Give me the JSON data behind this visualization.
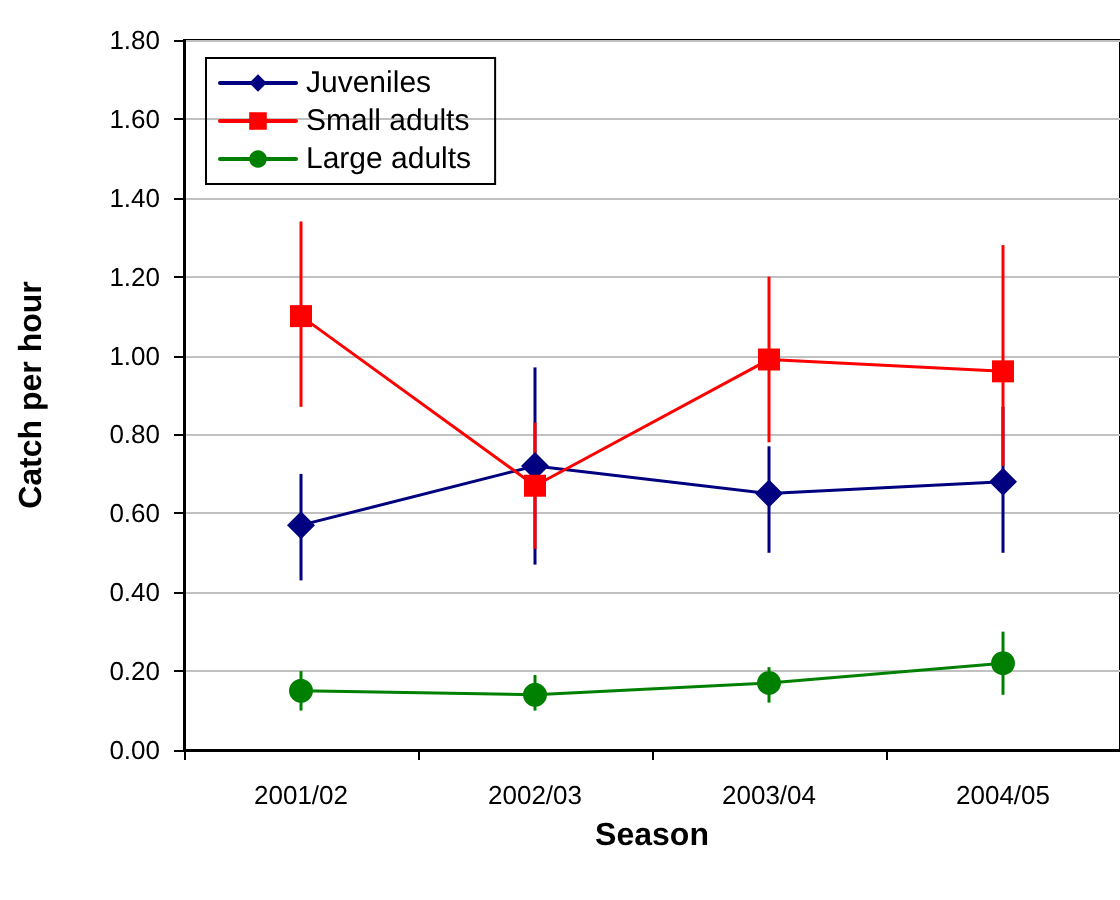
{
  "chart_data": {
    "type": "line",
    "xlabel": "Season",
    "ylabel": "Catch per hour",
    "categories": [
      "2001/02",
      "2002/03",
      "2003/04",
      "2004/05"
    ],
    "series": [
      {
        "name": "Juveniles",
        "color": "#000080",
        "marker": "diamond",
        "values": [
          0.57,
          0.72,
          0.65,
          0.68
        ],
        "errors": [
          [
            0.43,
            0.7
          ],
          [
            0.47,
            0.97
          ],
          [
            0.5,
            0.77
          ],
          [
            0.5,
            0.87
          ]
        ]
      },
      {
        "name": "Small adults",
        "color": "#ff0000",
        "marker": "square",
        "values": [
          1.1,
          0.67,
          0.99,
          0.96
        ],
        "errors": [
          [
            0.87,
            1.34
          ],
          [
            0.51,
            0.83
          ],
          [
            0.78,
            1.2
          ],
          [
            0.72,
            1.28
          ]
        ]
      },
      {
        "name": "Large adults",
        "color": "#008000",
        "marker": "circle",
        "values": [
          0.15,
          0.14,
          0.17,
          0.22
        ],
        "errors": [
          [
            0.1,
            0.2
          ],
          [
            0.1,
            0.19
          ],
          [
            0.12,
            0.21
          ],
          [
            0.14,
            0.3
          ]
        ]
      }
    ],
    "ylim": [
      0,
      1.8
    ],
    "yticks": [
      {
        "value": 0,
        "label": "0.00"
      },
      {
        "value": 0.2,
        "label": "0.20"
      },
      {
        "value": 0.4,
        "label": "0.40"
      },
      {
        "value": 0.6,
        "label": "0.60"
      },
      {
        "value": 0.8,
        "label": "0.80"
      },
      {
        "value": 1,
        "label": "1.00"
      },
      {
        "value": 1.2,
        "label": "1.20"
      },
      {
        "value": 1.4,
        "label": "1.40"
      },
      {
        "value": 1.6,
        "label": "1.60"
      },
      {
        "value": 1.8,
        "label": "1.80"
      }
    ],
    "grid": "y",
    "legend": "top left"
  }
}
